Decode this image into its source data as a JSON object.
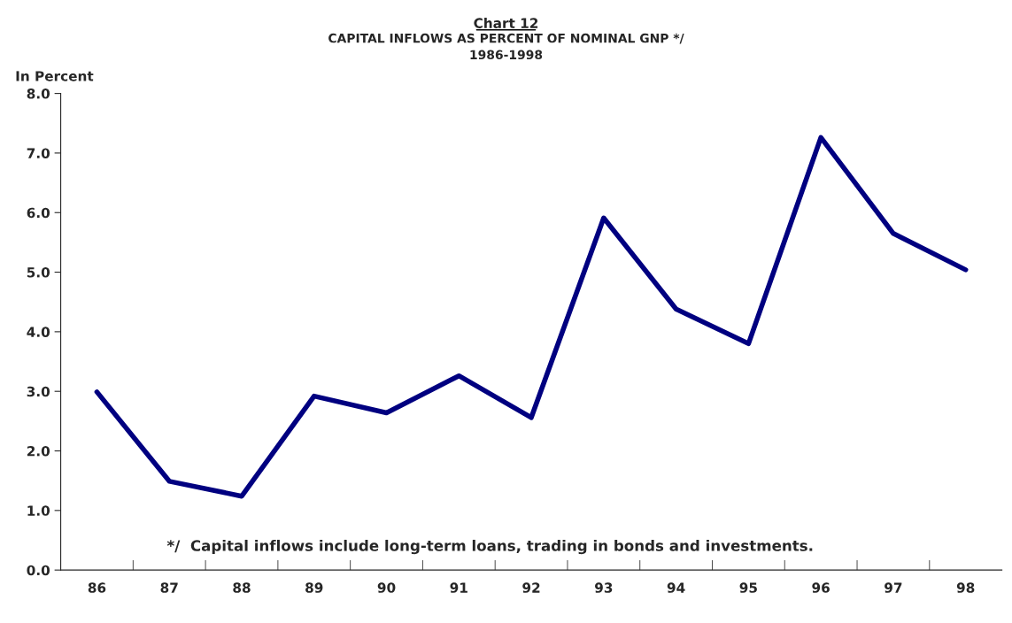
{
  "chart_data": {
    "type": "line",
    "title": "Chart 12",
    "subtitle": "CAPITAL INFLOWS AS PERCENT OF NOMINAL GNP */\n1986-1998",
    "ylabel": "In Percent",
    "categories": [
      "86",
      "87",
      "88",
      "89",
      "90",
      "91",
      "92",
      "93",
      "94",
      "95",
      "96",
      "97",
      "98"
    ],
    "series": [
      {
        "color": "#000080",
        "values": [
          2.99,
          1.49,
          1.24,
          2.92,
          2.64,
          3.26,
          2.56,
          5.91,
          4.38,
          3.8,
          7.26,
          5.65,
          5.04
        ]
      }
    ],
    "ylim": [
      0,
      8
    ],
    "yticks": [
      {
        "value": 0,
        "label": "0.0"
      },
      {
        "value": 1,
        "label": "1.0"
      },
      {
        "value": 2,
        "label": "2.0"
      },
      {
        "value": 3,
        "label": "3.0"
      },
      {
        "value": 4,
        "label": "4.0"
      },
      {
        "value": 5,
        "label": "5.0"
      },
      {
        "value": 6,
        "label": "6.0"
      },
      {
        "value": 7,
        "label": "7.0"
      },
      {
        "value": 8,
        "label": "8.0"
      }
    ],
    "annotations": [
      "*/  Capital inflows include long-term loans, trading in bonds and investments."
    ],
    "grid": false,
    "legend": false,
    "marker": "none",
    "line_style": "solid"
  }
}
